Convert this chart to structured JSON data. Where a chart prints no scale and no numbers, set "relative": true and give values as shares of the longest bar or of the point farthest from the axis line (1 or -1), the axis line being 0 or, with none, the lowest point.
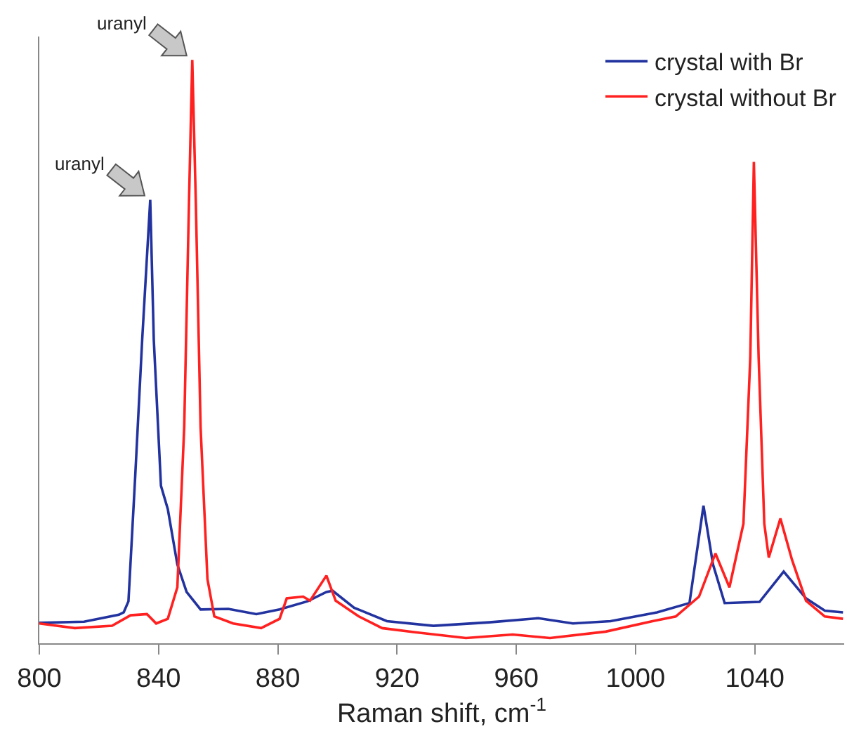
{
  "chart_data": {
    "type": "line",
    "relative": true,
    "xlabel": "Raman shift, cm$^{-1}$",
    "xlim": [
      800,
      1070
    ],
    "xticks": [
      800,
      840,
      880,
      920,
      960,
      1000,
      1040
    ],
    "legend": "top right",
    "grid": false,
    "marker": "none",
    "line_style": "solid",
    "annotations": [
      {
        "text": "uranyl",
        "x": 851.3,
        "y": 1
      },
      {
        "text": "uranyl",
        "x": 837.2,
        "y": 0.76
      }
    ],
    "series": [
      {
        "name": "crystal with Br",
        "color": "#2233a0",
        "x": [
          800,
          815,
          826.7,
          828.3,
          829.9,
          832.2,
          834.5,
          837.2,
          838.4,
          840.8,
          843.1,
          846.3,
          849.4,
          854.1,
          863.4,
          872.8,
          880.6,
          890,
          896.3,
          898.4,
          905.6,
          916.6,
          932.2,
          951,
          967.4,
          979,
          991.6,
          1007.2,
          1018.1,
          1022.8,
          1026,
          1029.9,
          1041.6,
          1049.7,
          1057.2,
          1063.5,
          1069.6
        ],
        "values": [
          0.035,
          0.037,
          0.049,
          0.053,
          0.072,
          0.29,
          0.52,
          0.76,
          0.52,
          0.27,
          0.23,
          0.135,
          0.088,
          0.058,
          0.059,
          0.05,
          0.058,
          0.072,
          0.088,
          0.09,
          0.061,
          0.038,
          0.03,
          0.036,
          0.043,
          0.034,
          0.038,
          0.053,
          0.069,
          0.236,
          0.135,
          0.069,
          0.071,
          0.123,
          0.077,
          0.056,
          0.053
        ]
      },
      {
        "name": "crystal without Br",
        "color": "#ff2020",
        "x": [
          800,
          811.9,
          824.4,
          830.6,
          836.1,
          839.2,
          843.1,
          846.3,
          848.6,
          850.2,
          851.3,
          852.5,
          854.1,
          856.4,
          858.7,
          865,
          874.4,
          880.6,
          883,
          888.5,
          890.8,
          896.3,
          899.4,
          907.2,
          915,
          926,
          943.1,
          958.8,
          971.3,
          990,
          1005.7,
          1013.5,
          1021.3,
          1026.8,
          1031.5,
          1036.2,
          1038.5,
          1039.7,
          1041.3,
          1043.2,
          1044.7,
          1048.6,
          1052.5,
          1057.2,
          1063.5,
          1069.6
        ],
        "values": [
          0.034,
          0.026,
          0.03,
          0.048,
          0.05,
          0.034,
          0.042,
          0.096,
          0.37,
          0.755,
          1,
          0.755,
          0.37,
          0.11,
          0.046,
          0.034,
          0.026,
          0.042,
          0.077,
          0.08,
          0.073,
          0.116,
          0.073,
          0.046,
          0.026,
          0.019,
          0.009,
          0.015,
          0.009,
          0.02,
          0.038,
          0.046,
          0.08,
          0.154,
          0.096,
          0.205,
          0.49,
          0.825,
          0.49,
          0.205,
          0.147,
          0.214,
          0.143,
          0.073,
          0.046,
          0.042
        ]
      }
    ]
  }
}
